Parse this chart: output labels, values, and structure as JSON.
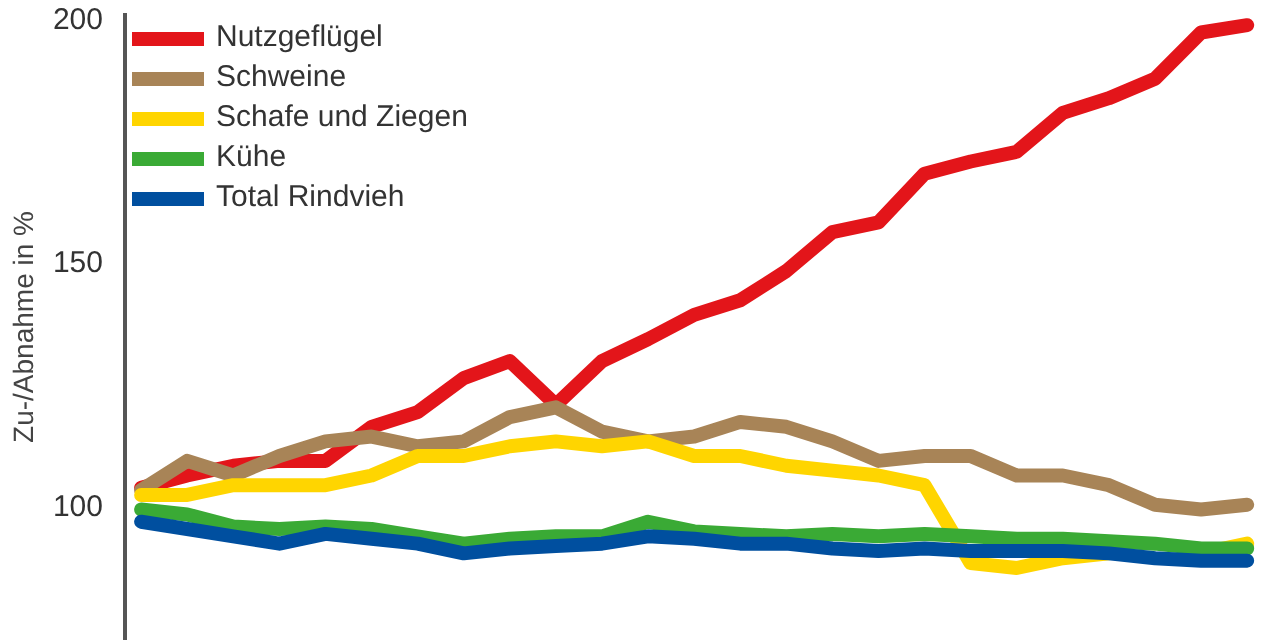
{
  "chart_data": {
    "type": "line",
    "ylabel": "Zu-/Abnahme in %",
    "categories": [
      null,
      null,
      null,
      null,
      null,
      null,
      null,
      null,
      null,
      null,
      null,
      null,
      null,
      null,
      null,
      null,
      null,
      null,
      null,
      null,
      null,
      null,
      null,
      null,
      null
    ],
    "series": [
      {
        "name": "Nutzgeflügel",
        "color": "#e3151a",
        "values": [
          103.5,
          106,
          108,
          109,
          109,
          116,
          119,
          126,
          129.5,
          120.5,
          129.5,
          134,
          139,
          142,
          148,
          156,
          158,
          168,
          170.5,
          172.5,
          180.5,
          183.5,
          187.5,
          197,
          198.5
        ]
      },
      {
        "name": "Schweine",
        "color": "#a88457",
        "values": [
          103,
          109,
          106,
          110,
          113,
          114,
          112,
          113,
          118,
          120,
          115,
          113,
          114,
          117,
          116,
          113,
          109,
          110,
          110,
          106,
          106,
          104,
          100,
          99,
          100
        ]
      },
      {
        "name": "Schafe und Ziegen",
        "color": "#ffd500",
        "values": [
          102,
          102,
          104,
          104,
          104,
          106,
          110,
          110,
          112,
          113,
          112,
          113,
          110,
          110,
          108,
          107,
          106,
          104,
          88,
          87,
          89,
          90,
          null,
          90,
          92
        ]
      },
      {
        "name": "Kühe",
        "color": "#3aaa35",
        "values": [
          99,
          98,
          95.5,
          95,
          95.5,
          95,
          93.5,
          92,
          93,
          93.5,
          93.5,
          96.5,
          94.5,
          94,
          93.5,
          94,
          93.5,
          94,
          93.5,
          93,
          93,
          92.5,
          92,
          91,
          91
        ]
      },
      {
        "name": "Total Rindvieh",
        "color": "#004f9f",
        "values": [
          96.5,
          95,
          93.5,
          92,
          94,
          93,
          92,
          90,
          91,
          91.5,
          92,
          93.5,
          93,
          92,
          92,
          91,
          90.5,
          91,
          90.5,
          90.5,
          90.5,
          90,
          89,
          88.5,
          88.5
        ]
      }
    ],
    "ylim": [
      72,
      201
    ],
    "yticks": [
      100,
      150,
      200
    ],
    "grid": false,
    "legend": "top left",
    "tick_labels": "y",
    "line_style": "solid",
    "marker": "none"
  }
}
